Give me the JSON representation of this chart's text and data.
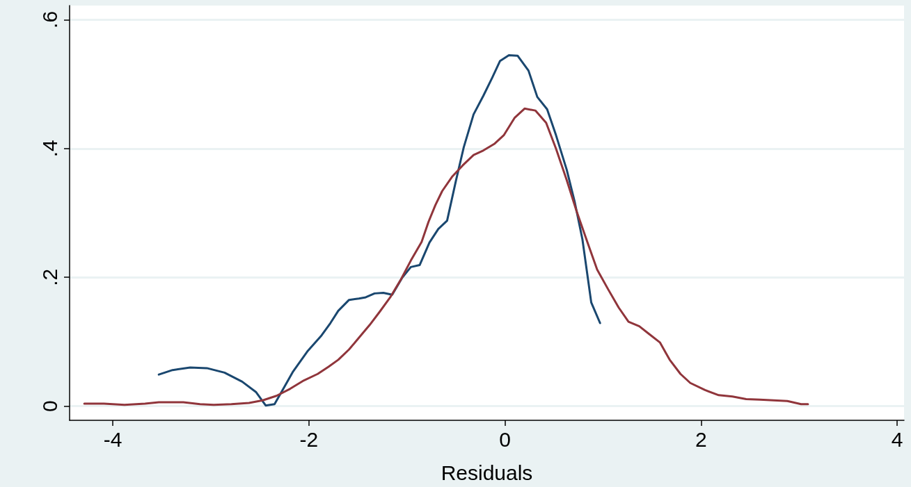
{
  "chart_data": {
    "type": "line",
    "xlabel": "Residuals",
    "xlim": [
      -4.44,
      4.07
    ],
    "ylim": [
      -0.022,
      0.622
    ],
    "xticks": [
      -4,
      -2,
      0,
      2,
      4
    ],
    "yticks": [
      {
        "value": 0,
        "label": "0"
      },
      {
        "value": 0.2,
        "label": ".2"
      },
      {
        "value": 0.4,
        "label": ".4"
      },
      {
        "value": 0.6,
        "label": ".6"
      }
    ],
    "grid": "y",
    "marker": "none",
    "line_style": "solid",
    "series": [
      {
        "color": "#1a476f",
        "x": [
          -3.53,
          -3.39,
          -3.21,
          -3.04,
          -2.86,
          -2.68,
          -2.54,
          -2.44,
          -2.35,
          -2.26,
          -2.16,
          -2.01,
          -1.87,
          -1.78,
          -1.7,
          -1.59,
          -1.49,
          -1.42,
          -1.33,
          -1.24,
          -1.15,
          -1.05,
          -0.96,
          -0.87,
          -0.77,
          -0.68,
          -0.59,
          -0.5,
          -0.42,
          -0.32,
          -0.22,
          -0.13,
          -0.05,
          0.04,
          0.13,
          0.24,
          0.33,
          0.43,
          0.52,
          0.63,
          0.71,
          0.79,
          0.88,
          0.97
        ],
        "values": [
          0.049,
          0.056,
          0.06,
          0.059,
          0.052,
          0.038,
          0.022,
          0.001,
          0.003,
          0.027,
          0.054,
          0.086,
          0.11,
          0.129,
          0.148,
          0.165,
          0.167,
          0.169,
          0.175,
          0.176,
          0.173,
          0.199,
          0.216,
          0.219,
          0.254,
          0.275,
          0.288,
          0.35,
          0.402,
          0.453,
          0.482,
          0.51,
          0.536,
          0.545,
          0.544,
          0.521,
          0.48,
          0.461,
          0.421,
          0.367,
          0.318,
          0.259,
          0.161,
          0.129
        ]
      },
      {
        "color": "#90353b",
        "x": [
          -4.29,
          -4.09,
          -3.88,
          -3.67,
          -3.53,
          -3.28,
          -3.11,
          -2.97,
          -2.79,
          -2.61,
          -2.47,
          -2.33,
          -2.19,
          -2.05,
          -1.91,
          -1.8,
          -1.7,
          -1.59,
          -1.49,
          -1.38,
          -1.28,
          -1.17,
          -1.06,
          -0.96,
          -0.85,
          -0.78,
          -0.71,
          -0.64,
          -0.54,
          -0.43,
          -0.32,
          -0.22,
          -0.11,
          -0.01,
          0.1,
          0.2,
          0.31,
          0.42,
          0.52,
          0.63,
          0.73,
          0.84,
          0.94,
          1.05,
          1.16,
          1.26,
          1.37,
          1.47,
          1.58,
          1.68,
          1.79,
          1.89,
          2.04,
          2.18,
          2.32,
          2.46,
          2.6,
          2.74,
          2.88,
          3.02,
          3.09
        ],
        "values": [
          0.004,
          0.004,
          0.002,
          0.004,
          0.006,
          0.006,
          0.003,
          0.002,
          0.003,
          0.005,
          0.009,
          0.016,
          0.027,
          0.04,
          0.05,
          0.061,
          0.072,
          0.088,
          0.106,
          0.126,
          0.146,
          0.169,
          0.197,
          0.226,
          0.255,
          0.286,
          0.312,
          0.334,
          0.356,
          0.374,
          0.39,
          0.397,
          0.407,
          0.421,
          0.448,
          0.462,
          0.459,
          0.44,
          0.4,
          0.351,
          0.303,
          0.255,
          0.212,
          0.182,
          0.153,
          0.131,
          0.124,
          0.112,
          0.099,
          0.072,
          0.05,
          0.036,
          0.025,
          0.017,
          0.015,
          0.011,
          0.01,
          0.009,
          0.008,
          0.003,
          0.003
        ]
      }
    ]
  }
}
